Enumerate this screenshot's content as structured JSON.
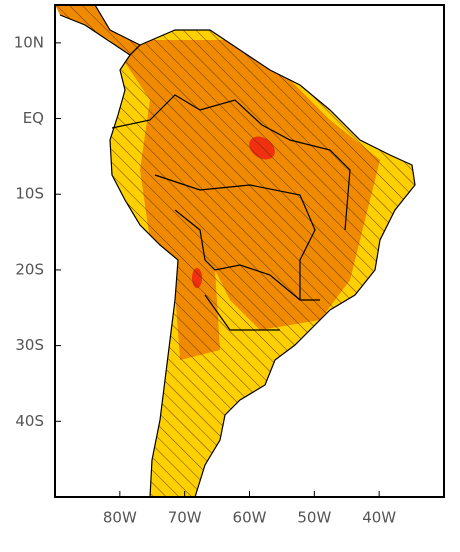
{
  "map": {
    "xlim": [
      -90,
      -30
    ],
    "ylim": [
      -50,
      15
    ],
    "xticks": [
      {
        "value": -80,
        "label": "80W"
      },
      {
        "value": -70,
        "label": "70W"
      },
      {
        "value": -60,
        "label": "60W"
      },
      {
        "value": -50,
        "label": "50W"
      },
      {
        "value": -40,
        "label": "40W"
      }
    ],
    "yticks": [
      {
        "value": 10,
        "label": "10N"
      },
      {
        "value": 0,
        "label": "EQ"
      },
      {
        "value": -10,
        "label": "10S"
      },
      {
        "value": -20,
        "label": "20S"
      },
      {
        "value": -30,
        "label": "30S"
      },
      {
        "value": -40,
        "label": "40S"
      }
    ]
  }
}
